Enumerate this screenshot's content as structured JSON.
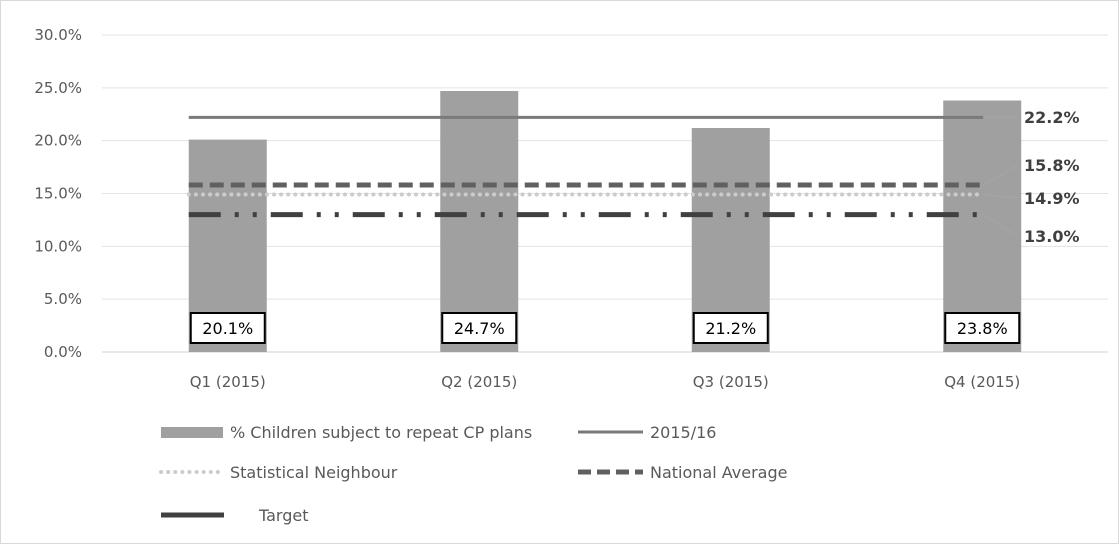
{
  "chart_data": {
    "type": "bar",
    "categories": [
      "Q1 (2015)",
      "Q2 (2015)",
      "Q3 (2015)",
      "Q4 (2015)"
    ],
    "ylim": [
      0,
      30
    ],
    "yticks": [
      "0.0%",
      "5.0%",
      "10.0%",
      "15.0%",
      "20.0%",
      "25.0%",
      "30.0%"
    ],
    "grid": true,
    "legend_position": "bottom",
    "bars": {
      "name": "% Children subject to repeat CP plans",
      "values": [
        20.1,
        24.7,
        21.2,
        23.8
      ],
      "labels": [
        "20.1%",
        "24.7%",
        "21.2%",
        "23.8%"
      ],
      "color": "#a0a0a0"
    },
    "lines": [
      {
        "key": "y2015",
        "name": "2015/16",
        "value": 22.2,
        "label": "22.2%",
        "style": "solid",
        "color": "#7a7a7a"
      },
      {
        "key": "national",
        "name": "National Average",
        "value": 15.8,
        "label": "15.8%",
        "style": "dashed",
        "color": "#606060"
      },
      {
        "key": "neighbour",
        "name": "Statistical Neighbour",
        "value": 14.9,
        "label": "14.9%",
        "style": "dotted",
        "color": "#cccccc"
      },
      {
        "key": "target",
        "name": "Target",
        "value": 13.0,
        "label": "13.0%",
        "style": "dashdotdot",
        "color": "#404040"
      }
    ]
  }
}
